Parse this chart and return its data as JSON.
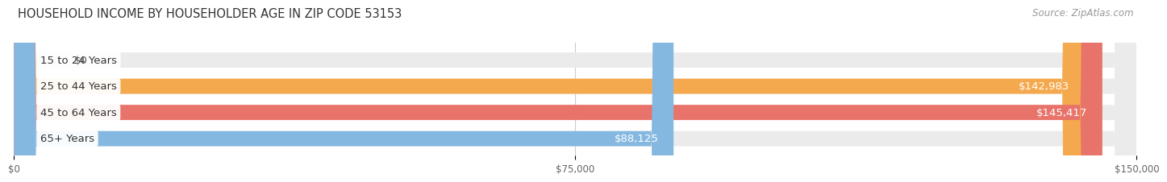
{
  "title": "HOUSEHOLD INCOME BY HOUSEHOLDER AGE IN ZIP CODE 53153",
  "source": "Source: ZipAtlas.com",
  "categories": [
    "15 to 24 Years",
    "25 to 44 Years",
    "45 to 64 Years",
    "65+ Years"
  ],
  "values": [
    0,
    142983,
    145417,
    88125
  ],
  "bar_colors": [
    "#f4a0a8",
    "#f5a94e",
    "#e8736a",
    "#85b8e0"
  ],
  "bar_bg_color": "#ebebeb",
  "value_labels": [
    "$0",
    "$142,983",
    "$145,417",
    "$88,125"
  ],
  "xlim": [
    0,
    150000
  ],
  "xticks": [
    0,
    75000,
    150000
  ],
  "xtick_labels": [
    "$0",
    "$75,000",
    "$150,000"
  ],
  "fig_bg_color": "#ffffff",
  "bar_height": 0.58,
  "label_fontsize": 9.5,
  "title_fontsize": 10.5,
  "source_fontsize": 8.5,
  "value_label_inside_threshold": 0.55
}
